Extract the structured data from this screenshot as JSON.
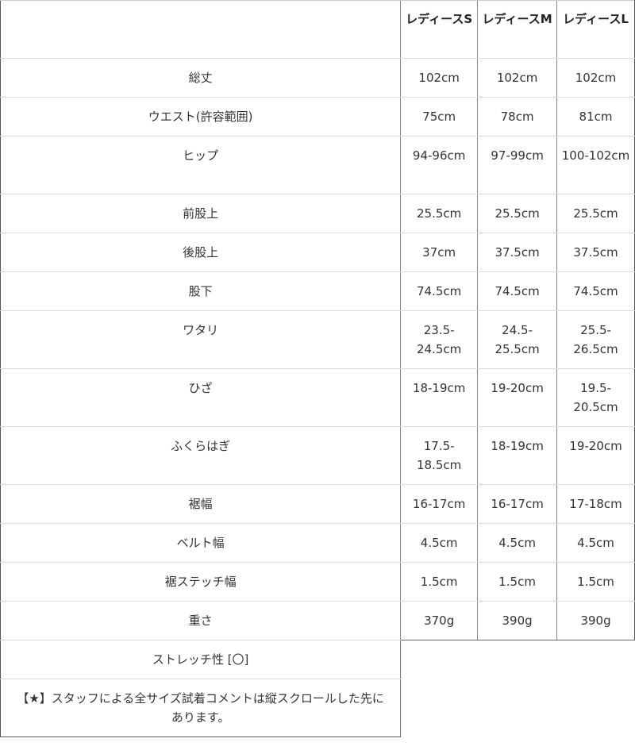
{
  "header": {
    "corner": "",
    "sizes": [
      "レディースS",
      "レディースM",
      "レディースL"
    ]
  },
  "rows": [
    {
      "label": "総丈",
      "values": [
        "102cm",
        "102cm",
        "102cm"
      ]
    },
    {
      "label": "ウエスト(許容範囲)",
      "values": [
        "75cm",
        "78cm",
        "81cm"
      ]
    },
    {
      "label": "ヒップ",
      "values": [
        "94-96cm",
        "97-99cm",
        "100-102cm"
      ]
    },
    {
      "label": "前股上",
      "values": [
        "25.5cm",
        "25.5cm",
        "25.5cm"
      ]
    },
    {
      "label": "後股上",
      "values": [
        "37cm",
        "37.5cm",
        "37.5cm"
      ]
    },
    {
      "label": "股下",
      "values": [
        "74.5cm",
        "74.5cm",
        "74.5cm"
      ]
    },
    {
      "label": "ワタリ",
      "values": [
        "23.5-24.5cm",
        "24.5-25.5cm",
        "25.5-26.5cm"
      ]
    },
    {
      "label": "ひざ",
      "values": [
        "18-19cm",
        "19-20cm",
        "19.5-20.5cm"
      ]
    },
    {
      "label": "ふくらはぎ",
      "values": [
        "17.5-18.5cm",
        "18-19cm",
        "19-20cm"
      ]
    },
    {
      "label": "裾幅",
      "values": [
        "16-17cm",
        "16-17cm",
        "17-18cm"
      ]
    },
    {
      "label": "ベルト幅",
      "values": [
        "4.5cm",
        "4.5cm",
        "4.5cm"
      ]
    },
    {
      "label": "裾ステッチ幅",
      "values": [
        "1.5cm",
        "1.5cm",
        "1.5cm"
      ]
    },
    {
      "label": "重さ",
      "values": [
        "370g",
        "390g",
        "390g"
      ]
    }
  ],
  "notes": [
    "ストレッチ性 [〇]",
    "【★】スタッフによる全サイズ試着コメントは縦スクロールした先にあります。"
  ]
}
